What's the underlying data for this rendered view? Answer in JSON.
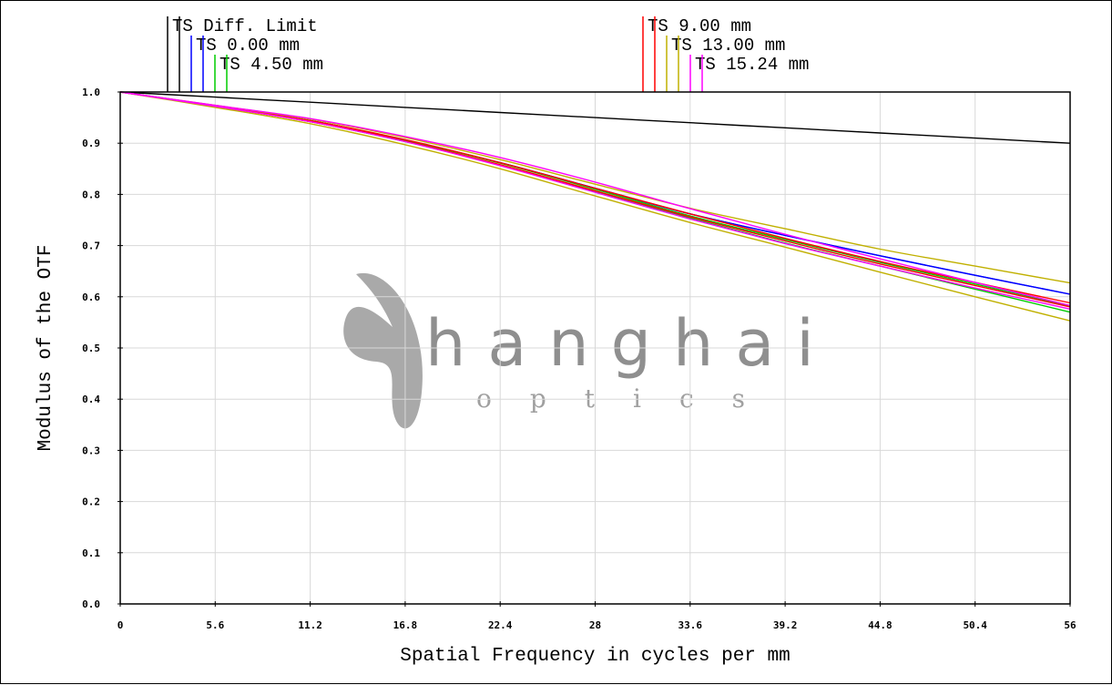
{
  "chart_data": {
    "type": "line",
    "xlabel": "Spatial Frequency in cycles per mm",
    "ylabel": "Modulus of the OTF",
    "xlim": [
      0,
      56
    ],
    "ylim": [
      0,
      1
    ],
    "x_ticks": [
      "0",
      "5.6",
      "11.2",
      "16.8",
      "22.4",
      "28",
      "33.6",
      "39.2",
      "44.8",
      "50.4",
      "56"
    ],
    "y_ticks": [
      "0.0",
      "0.1",
      "0.2",
      "0.3",
      "0.4",
      "0.5",
      "0.6",
      "0.7",
      "0.8",
      "0.9",
      "1.0"
    ],
    "grid": true,
    "x": [
      0,
      5.6,
      11.2,
      16.8,
      22.4,
      28,
      33.6,
      39.2,
      44.8,
      50.4,
      56
    ],
    "series": [
      {
        "name": "TS Diff. Limit",
        "color": "#000000",
        "values": [
          1.0,
          0.99,
          0.98,
          0.97,
          0.96,
          0.95,
          0.94,
          0.93,
          0.92,
          0.91,
          0.9
        ]
      },
      {
        "name": "TS 0.00 mm",
        "color": "#0000ff",
        "values": [
          1.0,
          0.973,
          0.944,
          0.906,
          0.862,
          0.812,
          0.762,
          0.72,
          0.68,
          0.642,
          0.605
        ]
      },
      {
        "name": "TS 0.00 mm",
        "color": "#0000ff",
        "values": [
          1.0,
          0.973,
          0.944,
          0.906,
          0.862,
          0.812,
          0.762,
          0.72,
          0.68,
          0.642,
          0.605
        ]
      },
      {
        "name": "TS 4.50 mm",
        "color": "#00cc00",
        "values": [
          1.0,
          0.972,
          0.942,
          0.903,
          0.857,
          0.806,
          0.754,
          0.705,
          0.66,
          0.615,
          0.57
        ]
      },
      {
        "name": "TS 4.50 mm",
        "color": "#00cc00",
        "values": [
          1.0,
          0.973,
          0.944,
          0.906,
          0.861,
          0.81,
          0.758,
          0.712,
          0.667,
          0.625,
          0.582
        ]
      },
      {
        "name": "TS 9.00 mm",
        "color": "#ff0000",
        "values": [
          1.0,
          0.972,
          0.942,
          0.904,
          0.858,
          0.807,
          0.756,
          0.709,
          0.664,
          0.622,
          0.58
        ]
      },
      {
        "name": "TS 9.00 mm",
        "color": "#ff0000",
        "values": [
          1.0,
          0.973,
          0.944,
          0.907,
          0.862,
          0.812,
          0.762,
          0.714,
          0.669,
          0.628,
          0.588
        ]
      },
      {
        "name": "TS 13.00 mm",
        "color": "#c0b000",
        "values": [
          1.0,
          0.974,
          0.947,
          0.911,
          0.868,
          0.82,
          0.773,
          0.733,
          0.693,
          0.66,
          0.627
        ]
      },
      {
        "name": "TS 13.00 mm",
        "color": "#c0b000",
        "values": [
          1.0,
          0.97,
          0.938,
          0.897,
          0.85,
          0.797,
          0.745,
          0.697,
          0.648,
          0.6,
          0.553
        ]
      },
      {
        "name": "TS 15.24 mm",
        "color": "#ff00ff",
        "values": [
          1.0,
          0.974,
          0.948,
          0.913,
          0.872,
          0.824,
          0.772,
          0.722,
          0.674,
          0.628,
          0.583
        ]
      },
      {
        "name": "TS 15.24 mm",
        "color": "#ff00ff",
        "values": [
          1.0,
          0.972,
          0.942,
          0.903,
          0.856,
          0.804,
          0.752,
          0.704,
          0.66,
          0.617,
          0.576
        ]
      }
    ],
    "legend": {
      "placement": "top",
      "left_group": [
        {
          "label": "TS Diff. Limit",
          "color": "#000000"
        },
        {
          "label": "TS 0.00 mm",
          "color": "#0000ff"
        },
        {
          "label": "TS 4.50 mm",
          "color": "#00cc00"
        }
      ],
      "right_group": [
        {
          "label": "TS 9.00 mm",
          "color": "#ff0000"
        },
        {
          "label": "TS 13.00 mm",
          "color": "#c0b000"
        },
        {
          "label": "TS 15.24 mm",
          "color": "#ff00ff"
        }
      ]
    }
  },
  "watermark": {
    "line1": "hanghai",
    "line2": "optics"
  }
}
